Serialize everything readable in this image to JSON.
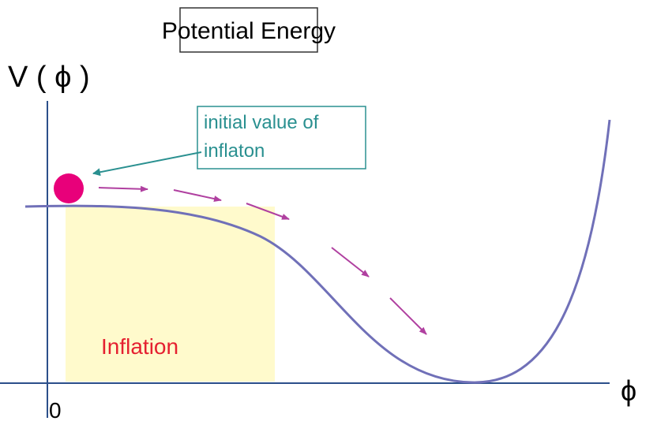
{
  "title": "Potential Energy",
  "y_axis_label": "V ( ϕ )",
  "x_axis_label": "ϕ",
  "origin_label": "0",
  "callout": {
    "lines": [
      "initial value of",
      "inflaton"
    ]
  },
  "region_label": "Inflation"
}
